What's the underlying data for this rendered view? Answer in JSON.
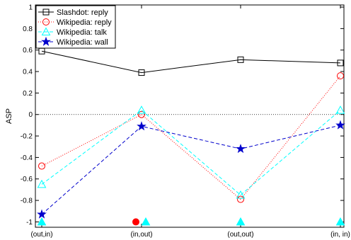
{
  "chart_data": {
    "type": "line",
    "xlabel": "",
    "ylabel": "ASP",
    "categories": [
      "(out,in)",
      "(in,out)",
      "(out,out)",
      "(in, in)"
    ],
    "ylim": [
      -1.05,
      1.02
    ],
    "yticks": [
      -1,
      -0.8,
      -0.6,
      -0.4,
      -0.2,
      0,
      0.2,
      0.4,
      0.6,
      0.8,
      1
    ],
    "grid": false,
    "zero_line": {
      "y": 0,
      "style": "dotted"
    },
    "legend_position": "top-left",
    "series": [
      {
        "name": "Slashdot: reply",
        "values": [
          0.59,
          0.39,
          0.51,
          0.48
        ],
        "color": "#000000",
        "marker": "square",
        "line": "solid"
      },
      {
        "name": "Wikipedia: reply",
        "values": [
          -0.48,
          0.0,
          -0.79,
          0.36
        ],
        "color": "#ff0000",
        "marker": "circle",
        "line": "dotted"
      },
      {
        "name": "Wikipedia: talk",
        "values": [
          -0.65,
          0.04,
          -0.75,
          0.04
        ],
        "color": "#00ffff",
        "marker": "triangle",
        "line": "dashed"
      },
      {
        "name": "Wikipedia: wall",
        "values": [
          -0.93,
          -0.11,
          -0.32,
          -0.1
        ],
        "color": "#0000cc",
        "marker": "star",
        "line": "dashed"
      }
    ],
    "annotations": [
      {
        "type": "filled-triangle",
        "color": "#00ffff",
        "x": 0,
        "y": -1
      },
      {
        "type": "filled-circle",
        "color": "#ff0000",
        "x": 1,
        "y": -1,
        "offset": "left"
      },
      {
        "type": "filled-triangle",
        "color": "#00ffff",
        "x": 1,
        "y": -1,
        "offset": "right"
      },
      {
        "type": "filled-triangle",
        "color": "#00ffff",
        "x": 2,
        "y": -1
      },
      {
        "type": "filled-triangle",
        "color": "#00ffff",
        "x": 3,
        "y": -1
      }
    ]
  }
}
